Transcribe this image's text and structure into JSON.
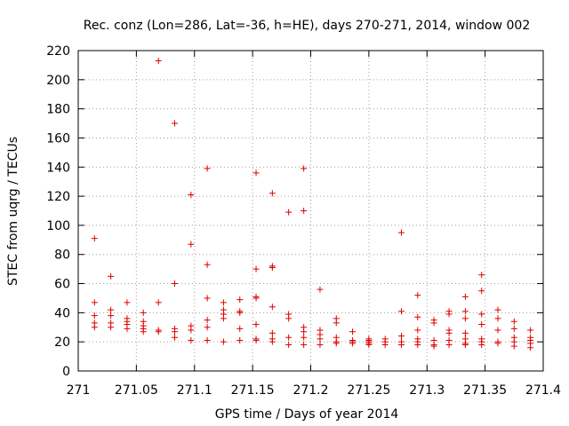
{
  "chart_data": {
    "type": "scatter",
    "title": "Rec. conz (Lon=286, Lat=-36, h=HE), days 270-271, 2014, window 002",
    "xlabel": "GPS time / Days of year 2014",
    "ylabel": "STEC from uqrg / TECUs",
    "xlim": [
      271,
      271.4
    ],
    "ylim": [
      0,
      220
    ],
    "xticks": [
      271,
      271.05,
      271.1,
      271.15,
      271.2,
      271.25,
      271.3,
      271.35,
      271.4
    ],
    "xtick_labels": [
      "271",
      "271.05",
      "271.1",
      "271.15",
      "271.2",
      "271.25",
      "271.3",
      "271.35",
      "271.4"
    ],
    "yticks": [
      0,
      20,
      40,
      60,
      80,
      100,
      120,
      140,
      160,
      180,
      200,
      220
    ],
    "ytick_labels": [
      "0",
      "20",
      "40",
      "60",
      "80",
      "100",
      "120",
      "140",
      "160",
      "180",
      "200",
      "220"
    ],
    "grid": true,
    "marker": "plus",
    "color": "#dd0000",
    "points": [
      [
        271.014,
        91
      ],
      [
        271.014,
        47
      ],
      [
        271.014,
        38
      ],
      [
        271.014,
        33
      ],
      [
        271.014,
        30
      ],
      [
        271.028,
        65
      ],
      [
        271.028,
        42
      ],
      [
        271.028,
        38
      ],
      [
        271.028,
        33
      ],
      [
        271.028,
        30
      ],
      [
        271.042,
        47
      ],
      [
        271.042,
        36
      ],
      [
        271.042,
        34
      ],
      [
        271.042,
        32
      ],
      [
        271.042,
        29
      ],
      [
        271.056,
        40
      ],
      [
        271.056,
        34
      ],
      [
        271.056,
        31
      ],
      [
        271.056,
        29
      ],
      [
        271.056,
        27
      ],
      [
        271.069,
        213
      ],
      [
        271.069,
        47
      ],
      [
        271.069,
        28
      ],
      [
        271.069,
        27
      ],
      [
        271.083,
        170
      ],
      [
        271.083,
        60
      ],
      [
        271.083,
        29
      ],
      [
        271.083,
        27
      ],
      [
        271.083,
        23
      ],
      [
        271.097,
        121
      ],
      [
        271.097,
        87
      ],
      [
        271.097,
        31
      ],
      [
        271.097,
        28
      ],
      [
        271.097,
        21
      ],
      [
        271.111,
        139
      ],
      [
        271.111,
        73
      ],
      [
        271.111,
        50
      ],
      [
        271.111,
        35
      ],
      [
        271.111,
        30
      ],
      [
        271.111,
        21
      ],
      [
        271.125,
        47
      ],
      [
        271.125,
        42
      ],
      [
        271.125,
        39
      ],
      [
        271.125,
        36
      ],
      [
        271.125,
        20
      ],
      [
        271.139,
        49
      ],
      [
        271.139,
        41
      ],
      [
        271.139,
        40
      ],
      [
        271.139,
        29
      ],
      [
        271.139,
        21
      ],
      [
        271.153,
        136
      ],
      [
        271.153,
        70
      ],
      [
        271.153,
        51
      ],
      [
        271.153,
        50
      ],
      [
        271.153,
        32
      ],
      [
        271.153,
        22
      ],
      [
        271.153,
        21
      ],
      [
        271.167,
        122
      ],
      [
        271.167,
        72
      ],
      [
        271.167,
        71
      ],
      [
        271.167,
        44
      ],
      [
        271.167,
        26
      ],
      [
        271.167,
        22
      ],
      [
        271.167,
        20
      ],
      [
        271.181,
        109
      ],
      [
        271.181,
        39
      ],
      [
        271.181,
        36
      ],
      [
        271.181,
        23
      ],
      [
        271.181,
        18
      ],
      [
        271.194,
        139
      ],
      [
        271.194,
        110
      ],
      [
        271.194,
        30
      ],
      [
        271.194,
        27
      ],
      [
        271.194,
        23
      ],
      [
        271.194,
        18
      ],
      [
        271.208,
        56
      ],
      [
        271.208,
        28
      ],
      [
        271.208,
        25
      ],
      [
        271.208,
        22
      ],
      [
        271.208,
        18
      ],
      [
        271.222,
        36
      ],
      [
        271.222,
        33
      ],
      [
        271.222,
        23
      ],
      [
        271.222,
        20
      ],
      [
        271.222,
        19
      ],
      [
        271.236,
        27
      ],
      [
        271.236,
        21
      ],
      [
        271.236,
        20
      ],
      [
        271.236,
        19
      ],
      [
        271.25,
        22
      ],
      [
        271.25,
        21
      ],
      [
        271.25,
        20
      ],
      [
        271.25,
        19
      ],
      [
        271.25,
        18
      ],
      [
        271.264,
        22
      ],
      [
        271.264,
        20
      ],
      [
        271.264,
        18
      ],
      [
        271.278,
        95
      ],
      [
        271.278,
        41
      ],
      [
        271.278,
        24
      ],
      [
        271.278,
        20
      ],
      [
        271.278,
        18
      ],
      [
        271.292,
        52
      ],
      [
        271.292,
        37
      ],
      [
        271.292,
        28
      ],
      [
        271.292,
        22
      ],
      [
        271.292,
        20
      ],
      [
        271.292,
        18
      ],
      [
        271.306,
        35
      ],
      [
        271.306,
        33
      ],
      [
        271.306,
        21
      ],
      [
        271.306,
        18
      ],
      [
        271.306,
        17
      ],
      [
        271.319,
        41
      ],
      [
        271.319,
        39
      ],
      [
        271.319,
        28
      ],
      [
        271.319,
        26
      ],
      [
        271.319,
        21
      ],
      [
        271.319,
        18
      ],
      [
        271.333,
        51
      ],
      [
        271.333,
        41
      ],
      [
        271.333,
        36
      ],
      [
        271.333,
        26
      ],
      [
        271.333,
        22
      ],
      [
        271.333,
        19
      ],
      [
        271.333,
        18
      ],
      [
        271.347,
        66
      ],
      [
        271.347,
        55
      ],
      [
        271.347,
        39
      ],
      [
        271.347,
        32
      ],
      [
        271.347,
        22
      ],
      [
        271.347,
        20
      ],
      [
        271.347,
        18
      ],
      [
        271.361,
        42
      ],
      [
        271.361,
        36
      ],
      [
        271.361,
        28
      ],
      [
        271.361,
        20
      ],
      [
        271.361,
        19
      ],
      [
        271.375,
        34
      ],
      [
        271.375,
        29
      ],
      [
        271.375,
        23
      ],
      [
        271.375,
        20
      ],
      [
        271.375,
        17
      ],
      [
        271.389,
        28
      ],
      [
        271.389,
        23
      ],
      [
        271.389,
        21
      ],
      [
        271.389,
        19
      ],
      [
        271.389,
        16
      ]
    ]
  }
}
